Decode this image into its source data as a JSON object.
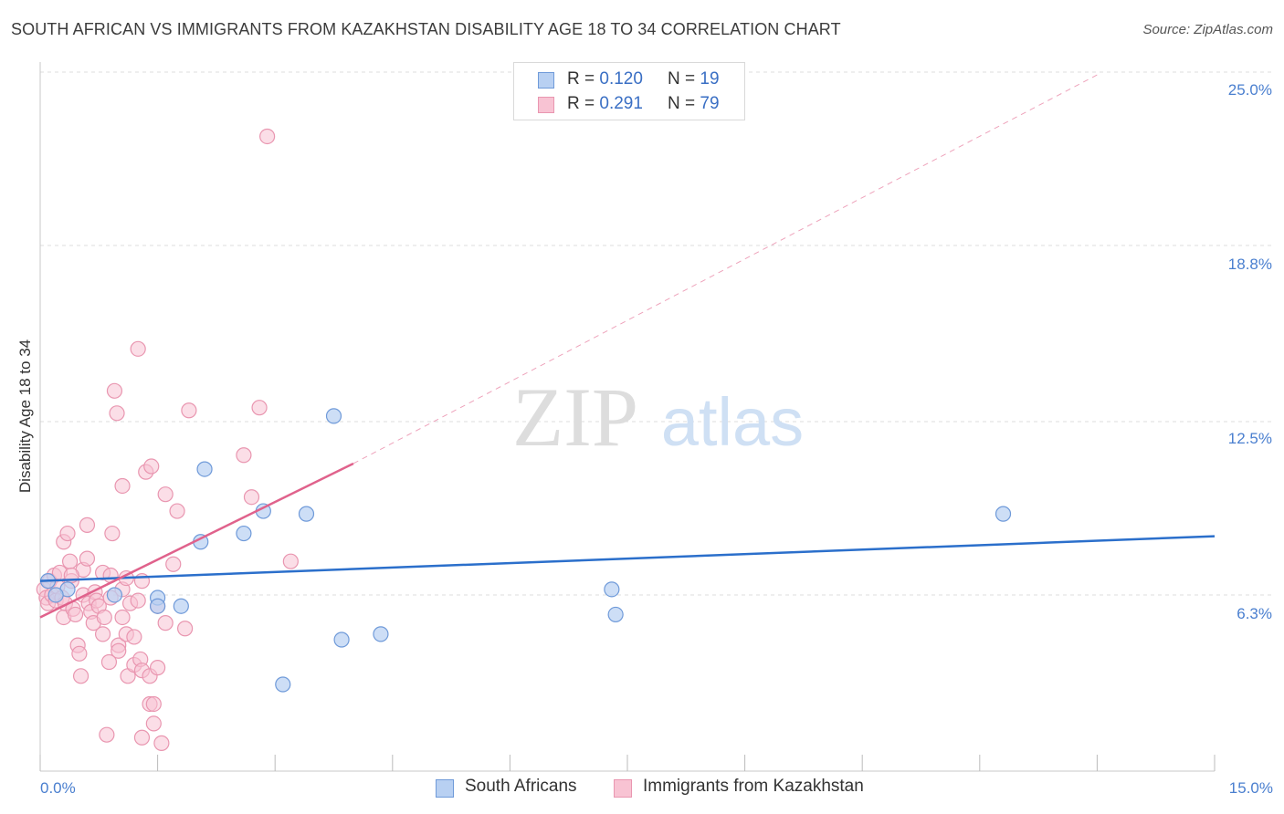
{
  "title": "SOUTH AFRICAN VS IMMIGRANTS FROM KAZAKHSTAN DISABILITY AGE 18 TO 34 CORRELATION CHART",
  "source": "Source: ZipAtlas.com",
  "watermark": {
    "zip": "ZIP",
    "atlas": "atlas"
  },
  "legend_top": {
    "rows": [
      {
        "r_label": "R = ",
        "r_value": "0.120",
        "n_label": "N = ",
        "n_value": "19"
      },
      {
        "r_label": "R = ",
        "r_value": "0.291",
        "n_label": "N = ",
        "n_value": "79"
      }
    ]
  },
  "legend_bottom": {
    "series_a": "South Africans",
    "series_b": "Immigrants from Kazakhstan"
  },
  "colors": {
    "blue_fill": "#b8d0f2",
    "blue_stroke": "#6f9ad9",
    "blue_line": "#2b6fcb",
    "pink_fill": "#f8c3d3",
    "pink_stroke": "#e996b0",
    "pink_line": "#e0628c",
    "grid": "#dcdcdc",
    "tick_text": "#4a7fcf"
  },
  "chart_data": {
    "type": "scatter",
    "title": "SOUTH AFRICAN VS IMMIGRANTS FROM KAZAKHSTAN DISABILITY AGE 18 TO 34 CORRELATION CHART",
    "xlabel": "",
    "ylabel": "Disability Age 18 to 34",
    "xlim": [
      0,
      15
    ],
    "ylim": [
      0,
      25
    ],
    "x_tick_labels": [
      "0.0%",
      "15.0%"
    ],
    "y_ticks": [
      6.3,
      12.5,
      18.8,
      25.0
    ],
    "y_tick_labels": [
      "6.3%",
      "12.5%",
      "18.8%",
      "25.0%"
    ],
    "series": [
      {
        "name": "South Africans",
        "R": 0.12,
        "N": 19,
        "points": [
          [
            0.1,
            6.8
          ],
          [
            0.35,
            6.5
          ],
          [
            0.95,
            6.3
          ],
          [
            1.5,
            6.2
          ],
          [
            1.5,
            5.9
          ],
          [
            1.8,
            5.9
          ],
          [
            2.05,
            8.2
          ],
          [
            2.1,
            10.8
          ],
          [
            2.6,
            8.5
          ],
          [
            2.85,
            9.3
          ],
          [
            3.1,
            3.1
          ],
          [
            3.4,
            9.2
          ],
          [
            3.75,
            12.7
          ],
          [
            3.85,
            4.7
          ],
          [
            4.35,
            4.9
          ],
          [
            7.3,
            6.5
          ],
          [
            7.35,
            5.6
          ],
          [
            12.3,
            9.2
          ],
          [
            0.2,
            6.3
          ]
        ],
        "trend": {
          "x": [
            0,
            15
          ],
          "y": [
            6.8,
            8.4
          ]
        }
      },
      {
        "name": "Immigrants from Kazakhstan",
        "R": 0.291,
        "N": 79,
        "points": [
          [
            0.05,
            6.5
          ],
          [
            0.08,
            6.2
          ],
          [
            0.1,
            6.0
          ],
          [
            0.12,
            6.8
          ],
          [
            0.15,
            6.3
          ],
          [
            0.18,
            7.0
          ],
          [
            0.2,
            6.1
          ],
          [
            0.22,
            6.6
          ],
          [
            0.25,
            7.1
          ],
          [
            0.28,
            6.2
          ],
          [
            0.3,
            5.5
          ],
          [
            0.32,
            6.0
          ],
          [
            0.3,
            8.2
          ],
          [
            0.35,
            8.5
          ],
          [
            0.38,
            7.5
          ],
          [
            0.4,
            6.8
          ],
          [
            0.42,
            5.8
          ],
          [
            0.45,
            5.6
          ],
          [
            0.48,
            4.5
          ],
          [
            0.5,
            4.2
          ],
          [
            0.52,
            3.4
          ],
          [
            0.55,
            6.3
          ],
          [
            0.55,
            7.2
          ],
          [
            0.6,
            8.8
          ],
          [
            0.6,
            7.6
          ],
          [
            0.62,
            6.0
          ],
          [
            0.65,
            5.7
          ],
          [
            0.68,
            5.3
          ],
          [
            0.7,
            6.4
          ],
          [
            0.72,
            6.1
          ],
          [
            0.75,
            5.9
          ],
          [
            0.8,
            4.9
          ],
          [
            0.8,
            7.1
          ],
          [
            0.82,
            5.5
          ],
          [
            0.85,
            1.3
          ],
          [
            0.88,
            3.9
          ],
          [
            0.9,
            7.0
          ],
          [
            0.9,
            6.2
          ],
          [
            0.92,
            8.5
          ],
          [
            0.95,
            13.6
          ],
          [
            0.98,
            12.8
          ],
          [
            1.0,
            4.5
          ],
          [
            1.0,
            4.3
          ],
          [
            1.05,
            6.5
          ],
          [
            1.05,
            10.2
          ],
          [
            1.05,
            5.5
          ],
          [
            1.1,
            6.9
          ],
          [
            1.1,
            4.9
          ],
          [
            1.12,
            3.4
          ],
          [
            1.15,
            6.0
          ],
          [
            1.2,
            4.8
          ],
          [
            1.2,
            3.8
          ],
          [
            1.25,
            6.1
          ],
          [
            1.25,
            15.1
          ],
          [
            1.28,
            4.0
          ],
          [
            1.3,
            3.6
          ],
          [
            1.3,
            6.8
          ],
          [
            1.3,
            1.2
          ],
          [
            1.35,
            10.7
          ],
          [
            1.4,
            3.4
          ],
          [
            1.4,
            2.4
          ],
          [
            1.42,
            10.9
          ],
          [
            1.45,
            2.4
          ],
          [
            1.45,
            1.7
          ],
          [
            1.5,
            3.7
          ],
          [
            1.5,
            5.9
          ],
          [
            1.55,
            1.0
          ],
          [
            1.6,
            9.9
          ],
          [
            1.6,
            5.3
          ],
          [
            1.7,
            7.4
          ],
          [
            1.75,
            9.3
          ],
          [
            1.85,
            5.1
          ],
          [
            1.9,
            12.9
          ],
          [
            2.6,
            11.3
          ],
          [
            2.7,
            9.8
          ],
          [
            2.8,
            13.0
          ],
          [
            2.9,
            22.7
          ],
          [
            3.2,
            7.5
          ],
          [
            0.4,
            7.0
          ]
        ],
        "trend": {
          "x": [
            0,
            4.0
          ],
          "y": [
            5.5,
            11.0
          ]
        },
        "trend_extension": {
          "x": [
            4.0,
            13.5
          ],
          "y": [
            11.0,
            24.9
          ]
        }
      }
    ]
  }
}
